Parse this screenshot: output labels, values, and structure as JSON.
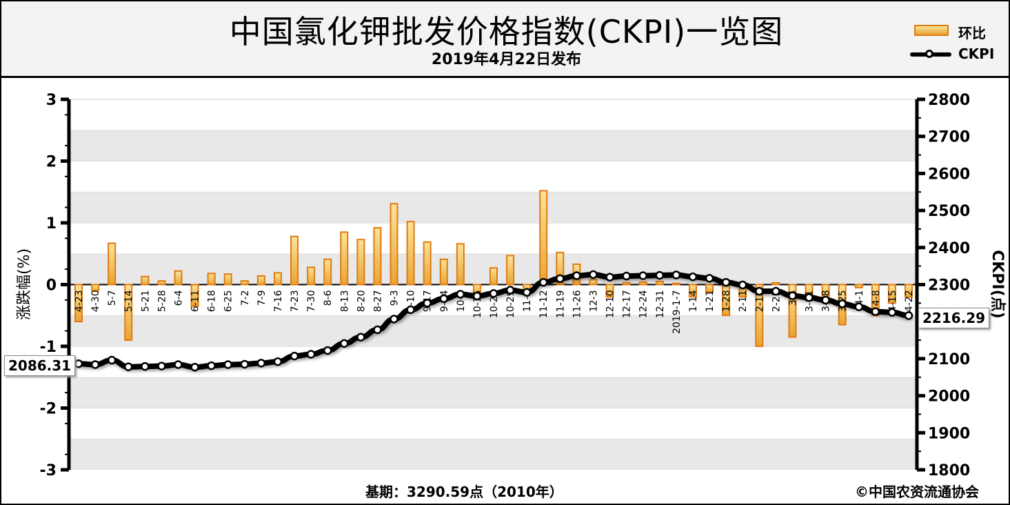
{
  "header": {
    "title": "中国氯化钾批发价格指数(CKPI)一览图",
    "subtitle": "2019年4月22日发布"
  },
  "legend": {
    "bar_label": "环比",
    "line_label": "CKPI"
  },
  "footer": {
    "base_note": "基期：3290.59点（2010年）",
    "copyright": "©中国农资流通协会"
  },
  "callouts": {
    "start_value": "2086.31",
    "end_value": "2216.29"
  },
  "colors": {
    "bar_fill_top": "#fbe39a",
    "bar_fill_bottom": "#e8a534",
    "bar_border": "#e07a10",
    "line": "#000000",
    "band": "#e8e8e8"
  },
  "chart_data": {
    "type": "bar",
    "title": "中国氯化钾批发价格指数(CKPI)一览图",
    "categories": [
      "4-23",
      "4-30",
      "5-7",
      "5-14",
      "5-21",
      "5-28",
      "6-4",
      "6-11",
      "6-18",
      "6-25",
      "7-2",
      "7-9",
      "7-16",
      "7-23",
      "7-30",
      "8-6",
      "8-13",
      "8-20",
      "8-27",
      "9-3",
      "9-10",
      "9-17",
      "9-24",
      "10-8",
      "10-15",
      "10-22",
      "10-29",
      "11-5",
      "11-12",
      "11-19",
      "11-26",
      "12-3",
      "12-10",
      "12-17",
      "12-24",
      "12-31",
      "2019-1-7",
      "1-14",
      "1-21",
      "1-28",
      "2-11",
      "2-18",
      "2-25",
      "3-4",
      "3-11",
      "3-18",
      "3-25",
      "4-1",
      "4-8",
      "4-15",
      "4-22"
    ],
    "y_left": {
      "label": "涨跌幅(%)",
      "ylim": [
        -3,
        3
      ],
      "ticks": [
        "3",
        "2",
        "1",
        "0",
        "-1",
        "-2",
        "-3"
      ]
    },
    "y_right": {
      "label": "CKPI(点)",
      "ylim": [
        1800,
        2800
      ],
      "ticks": [
        "2800",
        "2700",
        "2600",
        "2500",
        "2400",
        "2300",
        "2200",
        "2100",
        "2000",
        "1900",
        "1800"
      ]
    },
    "series": [
      {
        "name": "环比",
        "type": "bar",
        "axis": "left",
        "values": [
          -0.6,
          -0.1,
          0.67,
          -0.9,
          0.13,
          0.06,
          0.22,
          -0.35,
          0.18,
          0.17,
          0.06,
          0.14,
          0.19,
          0.78,
          0.28,
          0.41,
          0.85,
          0.73,
          0.92,
          1.31,
          1.02,
          0.69,
          0.41,
          0.66,
          -0.15,
          0.27,
          0.47,
          -0.13,
          1.52,
          0.52,
          0.33,
          0.08,
          -0.2,
          0.03,
          0.04,
          0.05,
          0.02,
          -0.2,
          -0.12,
          -0.5,
          -0.2,
          -1.0,
          0.03,
          -0.85,
          -0.25,
          -0.3,
          -0.65,
          -0.05,
          -0.5,
          -0.3,
          -0.2
        ]
      },
      {
        "name": "CKPI",
        "type": "line",
        "axis": "right",
        "values": [
          2086.31,
          2084,
          2096,
          2078,
          2079,
          2080,
          2084,
          2077,
          2081,
          2084,
          2085,
          2088,
          2092,
          2107,
          2112,
          2122,
          2141,
          2158,
          2178,
          2207,
          2232,
          2250,
          2262,
          2274,
          2269,
          2276,
          2285,
          2279,
          2306,
          2316,
          2324,
          2327,
          2320,
          2323,
          2324,
          2325,
          2326,
          2321,
          2317,
          2306,
          2299,
          2282,
          2282,
          2270,
          2265,
          2258,
          2248,
          2240,
          2227,
          2225,
          2216.29
        ]
      }
    ]
  }
}
